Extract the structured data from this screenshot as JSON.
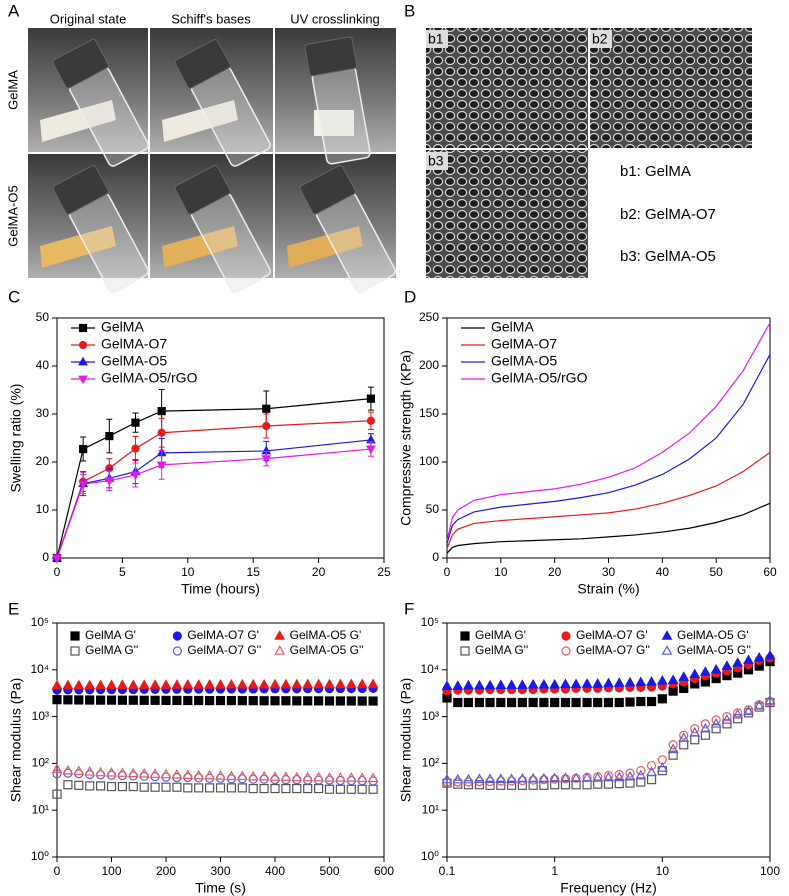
{
  "panel_labels": [
    "A",
    "B",
    "C",
    "D",
    "E",
    "F"
  ],
  "photos": {
    "columns": [
      "Original state",
      "Schiff's bases",
      "UV crosslinking"
    ],
    "rows": [
      "GelMA",
      "GelMA-O5"
    ]
  },
  "sem": {
    "images": [
      "b1",
      "b2",
      "b3"
    ],
    "legend": [
      "b1: GelMA",
      "b2: GelMA-O7",
      "b3: GelMA-O5"
    ]
  },
  "chart_data": [
    {
      "type": "line",
      "xlabel": "Time (hours)",
      "ylabel": "Swelling ratio (%)",
      "x": [
        0,
        2,
        4,
        6,
        8,
        16,
        24
      ],
      "xlim": [
        0,
        25
      ],
      "xticks": [
        0,
        5,
        10,
        15,
        20,
        25
      ],
      "ylim": [
        0,
        50
      ],
      "yticks": [
        0,
        10,
        20,
        30,
        40,
        50
      ],
      "legend": "upper left",
      "series": [
        {
          "name": "GelMA",
          "color": "#000000",
          "marker": "square",
          "values": [
            0,
            22.7,
            25.4,
            28.2,
            30.6,
            31.1,
            33.2
          ],
          "errors": [
            0,
            2.5,
            3.5,
            2,
            4.5,
            3.7,
            2.4
          ]
        },
        {
          "name": "GelMA-O7",
          "color": "#e8191c",
          "marker": "circle",
          "values": [
            0,
            15.9,
            18.7,
            22.8,
            26.1,
            27.5,
            28.6
          ],
          "errors": [
            0,
            2,
            2,
            2.5,
            3,
            2.5,
            1.8
          ]
        },
        {
          "name": "GelMA-O5",
          "color": "#1a1ae6",
          "marker": "triangle",
          "values": [
            0,
            15.5,
            16.6,
            18,
            21.9,
            22.3,
            24.6
          ],
          "errors": [
            0,
            2.5,
            2,
            2.5,
            3,
            2,
            1.3
          ]
        },
        {
          "name": "GelMA-O5/rGO",
          "color": "#e619e6",
          "marker": "triangle-down",
          "values": [
            0,
            15.4,
            16.1,
            17.3,
            19.4,
            20.7,
            22.7
          ],
          "errors": [
            0,
            2,
            2,
            2.5,
            3,
            1.5,
            1.5
          ]
        }
      ]
    },
    {
      "type": "line",
      "xlabel": "Strain (%)",
      "ylabel": "Compressive strength (KPa)",
      "x": [
        0,
        1,
        2,
        5,
        10,
        15,
        20,
        25,
        30,
        35,
        40,
        45,
        50,
        55,
        60
      ],
      "xlim": [
        0,
        60
      ],
      "xticks": [
        0,
        10,
        20,
        30,
        40,
        50,
        60
      ],
      "ylim": [
        0,
        250
      ],
      "yticks": [
        0,
        50,
        100,
        150,
        200,
        250
      ],
      "legend": "upper left",
      "series": [
        {
          "name": "GelMA",
          "color": "#000000",
          "values": [
            5,
            11,
            13,
            15,
            17,
            18,
            19,
            20,
            22,
            24,
            27,
            31,
            37,
            45,
            57
          ]
        },
        {
          "name": "GelMA-O7",
          "color": "#e8191c",
          "values": [
            10,
            24,
            30,
            36,
            39,
            41,
            43,
            45,
            47,
            51,
            57,
            65,
            75,
            90,
            110
          ]
        },
        {
          "name": "GelMA-O5",
          "color": "#1a1ae6",
          "values": [
            15,
            34,
            40,
            48,
            53,
            56,
            59,
            63,
            68,
            76,
            87,
            103,
            125,
            160,
            212
          ]
        },
        {
          "name": "GelMA-O5/rGO",
          "color": "#e619e6",
          "values": [
            18,
            42,
            50,
            60,
            66,
            69,
            72,
            77,
            84,
            94,
            110,
            130,
            158,
            195,
            245
          ]
        }
      ]
    },
    {
      "type": "scatter",
      "xlabel": "Time (s)",
      "ylabel": "Shear modulus (Pa)",
      "log_y": true,
      "x": [
        0,
        20,
        40,
        60,
        80,
        100,
        120,
        140,
        160,
        180,
        200,
        220,
        240,
        260,
        280,
        300,
        320,
        340,
        360,
        380,
        400,
        420,
        440,
        460,
        480,
        500,
        520,
        540,
        560,
        580
      ],
      "xlim": [
        0,
        600
      ],
      "xticks": [
        0,
        100,
        200,
        300,
        400,
        500,
        600
      ],
      "ylim": [
        1,
        100000
      ],
      "yticks": [
        {
          "value": 1,
          "label": "10⁰"
        },
        {
          "value": 10,
          "label": "10¹"
        },
        {
          "value": 100,
          "label": "10²"
        },
        {
          "value": 1000,
          "label": "10³"
        },
        {
          "value": 10000,
          "label": "10⁴"
        },
        {
          "value": 100000,
          "label": "10⁵"
        }
      ],
      "legend": "upper center",
      "series": [
        {
          "name": "GelMA G'",
          "color": "#000000",
          "marker": "square",
          "filled": true,
          "values": [
            2300,
            2280,
            2270,
            2260,
            2250,
            2250,
            2240,
            2240,
            2230,
            2230,
            2220,
            2220,
            2210,
            2210,
            2200,
            2200,
            2200,
            2190,
            2190,
            2180,
            2180,
            2180,
            2170,
            2170,
            2170,
            2160,
            2160,
            2160,
            2150,
            2150
          ]
        },
        {
          "name": "GelMA-O7 G'",
          "color": "#1a1ae6",
          "marker": "circle",
          "filled": true,
          "values": [
            3700,
            3720,
            3740,
            3750,
            3760,
            3780,
            3790,
            3800,
            3810,
            3820,
            3830,
            3840,
            3850,
            3860,
            3870,
            3880,
            3890,
            3900,
            3900,
            3910,
            3920,
            3930,
            3940,
            3950,
            3950,
            3960,
            3970,
            3980,
            3990,
            4000
          ]
        },
        {
          "name": "GelMA-O5 G'",
          "color": "#e8191c",
          "marker": "triangle",
          "filled": true,
          "values": [
            4600,
            4620,
            4640,
            4650,
            4660,
            4680,
            4690,
            4700,
            4710,
            4720,
            4730,
            4740,
            4750,
            4760,
            4770,
            4780,
            4790,
            4800,
            4800,
            4810,
            4820,
            4830,
            4840,
            4850,
            4850,
            4860,
            4870,
            4880,
            4890,
            4900
          ]
        },
        {
          "name": "GelMA G''",
          "color": "#555555",
          "marker": "square",
          "filled": false,
          "values": [
            22,
            35,
            34,
            33,
            33,
            32,
            32,
            32,
            31,
            31,
            31,
            31,
            30,
            30,
            30,
            30,
            30,
            30,
            29,
            29,
            29,
            29,
            29,
            29,
            29,
            28,
            28,
            28,
            28,
            28
          ]
        },
        {
          "name": "GelMA-O7 G''",
          "color": "#5a5ae6",
          "marker": "circle",
          "filled": false,
          "values": [
            60,
            62,
            60,
            58,
            57,
            56,
            55,
            54,
            53,
            52,
            51,
            50,
            50,
            49,
            48,
            48,
            47,
            47,
            46,
            46,
            45,
            45,
            45,
            44,
            44,
            44,
            43,
            43,
            43,
            42
          ]
        },
        {
          "name": "GelMA-O5 G''",
          "color": "#e85a5a",
          "marker": "triangle",
          "filled": false,
          "values": [
            75,
            70,
            68,
            66,
            64,
            63,
            62,
            61,
            60,
            59,
            58,
            57,
            56,
            55,
            55,
            54,
            53,
            53,
            52,
            52,
            51,
            51,
            50,
            50,
            50,
            49,
            49,
            49,
            48,
            48
          ]
        }
      ]
    },
    {
      "type": "scatter",
      "xlabel": "Frequency (Hz)",
      "ylabel": "Shear modulus (Pa)",
      "log_x": true,
      "log_y": true,
      "x": [
        0.1,
        0.126,
        0.158,
        0.2,
        0.251,
        0.316,
        0.398,
        0.501,
        0.631,
        0.794,
        1,
        1.26,
        1.58,
        2,
        2.51,
        3.16,
        3.98,
        5.01,
        6.31,
        7.94,
        10,
        12.6,
        15.8,
        20,
        25.1,
        31.6,
        39.8,
        50.1,
        63.1,
        79.4,
        100
      ],
      "xlim": [
        0.1,
        100
      ],
      "xticks": [
        0.1,
        1,
        10,
        100
      ],
      "ylim": [
        1,
        100000
      ],
      "yticks": [
        {
          "value": 1,
          "label": "10⁰"
        },
        {
          "value": 10,
          "label": "10¹"
        },
        {
          "value": 100,
          "label": "10²"
        },
        {
          "value": 1000,
          "label": "10³"
        },
        {
          "value": 10000,
          "label": "10⁴"
        },
        {
          "value": 100000,
          "label": "10⁵"
        }
      ],
      "legend": "upper center",
      "series": [
        {
          "name": "GelMA G'",
          "color": "#000000",
          "marker": "square",
          "filled": true,
          "values": [
            2500,
            2000,
            2000,
            2000,
            2000,
            2000,
            2000,
            2000,
            2000,
            2000,
            2000,
            2000,
            2000,
            2000,
            2000,
            2000,
            2000,
            2050,
            2100,
            2100,
            2400,
            3500,
            4000,
            5000,
            5500,
            6500,
            7500,
            8500,
            10000,
            12000,
            15000
          ]
        },
        {
          "name": "GelMA-O7 G'",
          "color": "#e8191c",
          "marker": "circle",
          "filled": true,
          "values": [
            3600,
            3700,
            3700,
            3700,
            3800,
            3800,
            3800,
            3800,
            3800,
            3900,
            3900,
            3900,
            4000,
            4000,
            4000,
            4100,
            4100,
            4200,
            4200,
            4300,
            4500,
            5000,
            5500,
            6500,
            7500,
            8500,
            9500,
            11000,
            13000,
            16000,
            18000
          ]
        },
        {
          "name": "GelMA-O5 G'",
          "color": "#1a1ae6",
          "marker": "triangle",
          "filled": true,
          "values": [
            4500,
            4500,
            4600,
            4600,
            4600,
            4700,
            4700,
            4700,
            4800,
            4800,
            4800,
            4900,
            4900,
            5000,
            5000,
            5100,
            5200,
            5300,
            5400,
            5500,
            5800,
            6000,
            7000,
            8000,
            9000,
            10000,
            12000,
            14000,
            16000,
            18000,
            20000
          ]
        },
        {
          "name": "GelMA G''",
          "color": "#555555",
          "marker": "square",
          "filled": false,
          "values": [
            38,
            36,
            35,
            35,
            34,
            34,
            34,
            34,
            34,
            34,
            35,
            35,
            35,
            35,
            36,
            36,
            37,
            38,
            40,
            45,
            70,
            150,
            250,
            320,
            400,
            550,
            700,
            900,
            1200,
            1600,
            2000
          ]
        },
        {
          "name": "GelMA-O7 G''",
          "color": "#e85a5a",
          "marker": "circle",
          "filled": false,
          "values": [
            40,
            40,
            40,
            41,
            41,
            42,
            42,
            43,
            44,
            45,
            46,
            47,
            48,
            50,
            52,
            55,
            58,
            62,
            70,
            90,
            120,
            250,
            400,
            550,
            700,
            850,
            1000,
            1200,
            1400,
            1800,
            2100
          ]
        },
        {
          "name": "GelMA-O5 G''",
          "color": "#5a5ae6",
          "marker": "triangle",
          "filled": false,
          "values": [
            45,
            45,
            45,
            46,
            46,
            46,
            46,
            47,
            47,
            47,
            48,
            48,
            48,
            49,
            49,
            50,
            50,
            52,
            55,
            65,
            80,
            200,
            350,
            450,
            550,
            700,
            850,
            1100,
            1300,
            1700,
            2200
          ]
        }
      ]
    }
  ]
}
